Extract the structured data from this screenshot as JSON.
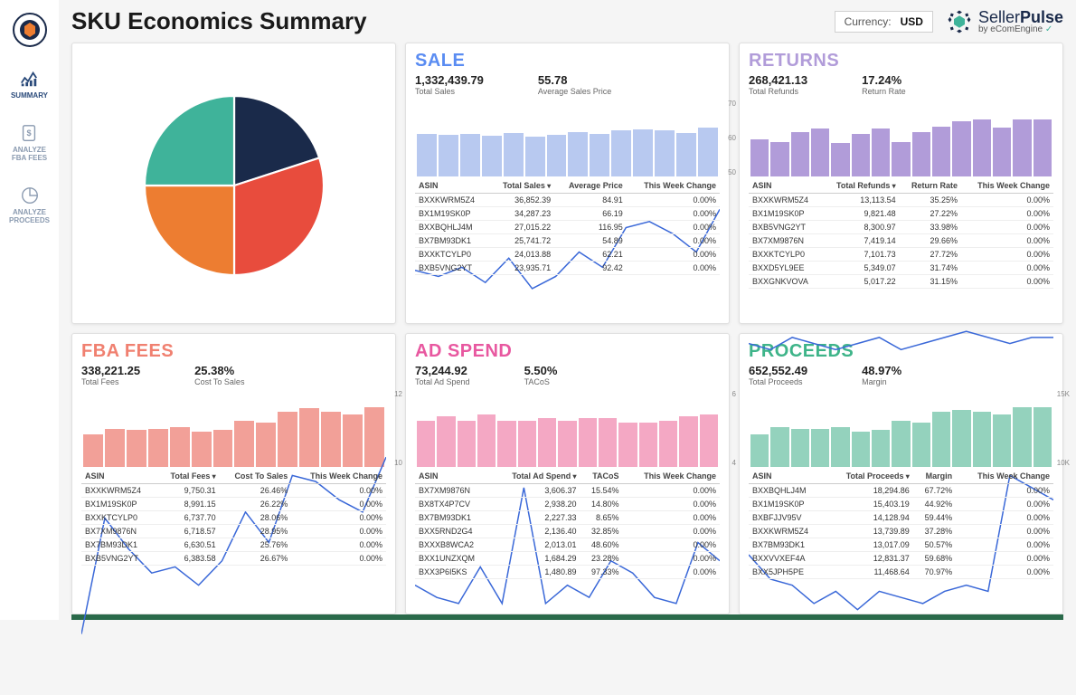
{
  "header": {
    "title": "SKU Economics Summary",
    "currency_label": "Currency:",
    "currency_value": "USD",
    "brand_primary": "Seller",
    "brand_bold": "Pulse",
    "brand_sub": "by eComEngine"
  },
  "sidebar": {
    "items": [
      {
        "label": "SUMMARY"
      },
      {
        "label": "ANALYZE\nFBA FEES"
      },
      {
        "label": "ANALYZE\nPROCEEDS"
      }
    ]
  },
  "pie": {
    "slices": [
      {
        "color": "#1a2a4a",
        "pct": 20
      },
      {
        "color": "#e84c3d",
        "pct": 30
      },
      {
        "color": "#ed7d31",
        "pct": 25
      },
      {
        "color": "#3fb39a",
        "pct": 25
      }
    ]
  },
  "cards": {
    "sale": {
      "title": "SALE",
      "title_color": "#5a8cf2",
      "metric1_num": "1,332,439.79",
      "metric1_lbl": "Total Sales",
      "metric2_num": "55.78",
      "metric2_lbl": "Average Sales Price",
      "bar_color": "#b8c9f0",
      "line_color": "#3a68d8",
      "bars": [
        55,
        54,
        55,
        53,
        56,
        52,
        54,
        58,
        55,
        60,
        61,
        60,
        56,
        63
      ],
      "line_y": [
        44,
        42,
        45,
        40,
        48,
        38,
        42,
        50,
        45,
        58,
        60,
        56,
        50,
        64
      ],
      "y_ticks": [
        "70",
        "60",
        "50"
      ],
      "cols": [
        "ASIN",
        "Total Sales",
        "Average Price",
        "This Week Change"
      ],
      "rows": [
        [
          "BXXKWRM5Z4",
          "36,852.39",
          "84.91",
          "0.00%"
        ],
        [
          "BX1M19SK0P",
          "34,287.23",
          "66.19",
          "0.00%"
        ],
        [
          "BXXBQHLJ4M",
          "27,015.22",
          "116.95",
          "0.00%"
        ],
        [
          "BX7BM93DK1",
          "25,741.72",
          "54.89",
          "0.00%"
        ],
        [
          "BXXKTCYLP0",
          "24,013.88",
          "62.21",
          "0.00%"
        ],
        [
          "BXB5VNG2YT",
          "23,935.71",
          "92.42",
          "0.00%"
        ]
      ]
    },
    "returns": {
      "title": "RETURNS",
      "title_color": "#b19cd9",
      "metric1_num": "268,421.13",
      "metric1_lbl": "Total Refunds",
      "metric2_num": "17.24%",
      "metric2_lbl": "Return Rate",
      "bar_color": "#b19cd9",
      "line_color": "#3a68d8",
      "bars": [
        48,
        45,
        58,
        62,
        44,
        55,
        62,
        45,
        58,
        65,
        72,
        74,
        64,
        74,
        74
      ],
      "line_y": [
        20,
        18,
        22,
        20,
        18,
        20,
        22,
        18,
        20,
        22,
        24,
        22,
        20,
        22,
        22
      ],
      "y_ticks": [],
      "cols": [
        "ASIN",
        "Total Refunds",
        "Return Rate",
        "This Week Change"
      ],
      "rows": [
        [
          "BXXKWRM5Z4",
          "13,113.54",
          "35.25%",
          "0.00%"
        ],
        [
          "BX1M19SK0P",
          "9,821.48",
          "27.22%",
          "0.00%"
        ],
        [
          "BXB5VNG2YT",
          "8,300.97",
          "33.98%",
          "0.00%"
        ],
        [
          "BX7XM9876N",
          "7,419.14",
          "29.66%",
          "0.00%"
        ],
        [
          "BXXKTCYLP0",
          "7,101.73",
          "27.72%",
          "0.00%"
        ],
        [
          "BXXD5YL9EE",
          "5,349.07",
          "31.74%",
          "0.00%"
        ],
        [
          "BXXGNKVOVA",
          "5,017.22",
          "31.15%",
          "0.00%"
        ]
      ]
    },
    "fba": {
      "title": "FBA FEES",
      "title_color": "#f08070",
      "metric1_num": "338,221.25",
      "metric1_lbl": "Total Fees",
      "metric2_num": "25.38%",
      "metric2_lbl": "Cost To Sales",
      "bar_color": "#f2a098",
      "line_color": "#3a68d8",
      "bars": [
        42,
        50,
        48,
        50,
        52,
        46,
        48,
        60,
        58,
        72,
        76,
        72,
        68,
        78
      ],
      "line_y": [
        20,
        58,
        48,
        40,
        42,
        36,
        44,
        60,
        50,
        72,
        70,
        64,
        60,
        78
      ],
      "y_ticks": [
        "12",
        "10"
      ],
      "cols": [
        "ASIN",
        "Total Fees",
        "Cost To Sales",
        "This Week Change"
      ],
      "rows": [
        [
          "BXXKWRM5Z4",
          "9,750.31",
          "26.46%",
          "0.00%"
        ],
        [
          "BX1M19SK0P",
          "8,991.15",
          "26.22%",
          "0.00%"
        ],
        [
          "BXXKTCYLP0",
          "6,737.70",
          "28.06%",
          "0.00%"
        ],
        [
          "BX7XM9876N",
          "6,718.57",
          "28.95%",
          "0.00%"
        ],
        [
          "BX7BM93DK1",
          "6,630.51",
          "25.76%",
          "0.00%"
        ],
        [
          "BXB5VNG2YT",
          "6,383.58",
          "26.67%",
          "0.00%"
        ]
      ]
    },
    "adspend": {
      "title": "AD SPEND",
      "title_color": "#e858a0",
      "metric1_num": "73,244.92",
      "metric1_lbl": "Total Ad Spend",
      "metric2_num": "5.50%",
      "metric2_lbl": "TACoS",
      "bar_color": "#f4a8c4",
      "line_color": "#3a68d8",
      "bars": [
        60,
        66,
        60,
        68,
        60,
        60,
        64,
        60,
        64,
        64,
        58,
        58,
        60,
        66,
        68
      ],
      "line_y": [
        36,
        32,
        30,
        42,
        30,
        68,
        30,
        36,
        32,
        44,
        40,
        32,
        30,
        50,
        44
      ],
      "y_ticks": [
        "6",
        "4"
      ],
      "cols": [
        "ASIN",
        "Total Ad Spend",
        "TACoS",
        "This Week Change"
      ],
      "rows": [
        [
          "BX7XM9876N",
          "3,606.37",
          "15.54%",
          "0.00%"
        ],
        [
          "BX8TX4P7CV",
          "2,938.20",
          "14.80%",
          "0.00%"
        ],
        [
          "BX7BM93DK1",
          "2,227.33",
          "8.65%",
          "0.00%"
        ],
        [
          "BXX5RND2G4",
          "2,136.40",
          "32.85%",
          "0.00%"
        ],
        [
          "BXXXB8WCA2",
          "2,013.01",
          "48.60%",
          "0.00%"
        ],
        [
          "BXX1UNZXQM",
          "1,684.29",
          "23.28%",
          "0.00%"
        ],
        [
          "BXX3P6I5KS",
          "1,480.89",
          "97.33%",
          "0.00%"
        ]
      ]
    },
    "proceeds": {
      "title": "PROCEEDS",
      "title_color": "#3eb489",
      "metric1_num": "652,552.49",
      "metric1_lbl": "Total Proceeds",
      "metric2_num": "48.97%",
      "metric2_lbl": "Margin",
      "bar_color": "#94d2bd",
      "line_color": "#3a68d8",
      "bars": [
        42,
        52,
        50,
        50,
        52,
        46,
        48,
        60,
        58,
        72,
        74,
        72,
        68,
        78,
        78
      ],
      "line_y": [
        46,
        38,
        36,
        30,
        34,
        28,
        34,
        32,
        30,
        34,
        36,
        34,
        72,
        68,
        64
      ],
      "y_ticks": [
        "15K",
        "10K"
      ],
      "cols": [
        "ASIN",
        "Total Proceeds",
        "Margin",
        "This Week Change"
      ],
      "rows": [
        [
          "BXXBQHLJ4M",
          "18,294.86",
          "67.72%",
          "0.00%"
        ],
        [
          "BX1M19SK0P",
          "15,403.19",
          "44.92%",
          "0.00%"
        ],
        [
          "BXBFJJV95V",
          "14,128.94",
          "59.44%",
          "0.00%"
        ],
        [
          "BXXKWRM5Z4",
          "13,739.89",
          "37.28%",
          "0.00%"
        ],
        [
          "BX7BM93DK1",
          "13,017.09",
          "50.57%",
          "0.00%"
        ],
        [
          "BXXVVXEF4A",
          "12,831.37",
          "59.68%",
          "0.00%"
        ],
        [
          "BXX5JPH5PE",
          "11,468.64",
          "70.97%",
          "0.00%"
        ]
      ]
    }
  }
}
